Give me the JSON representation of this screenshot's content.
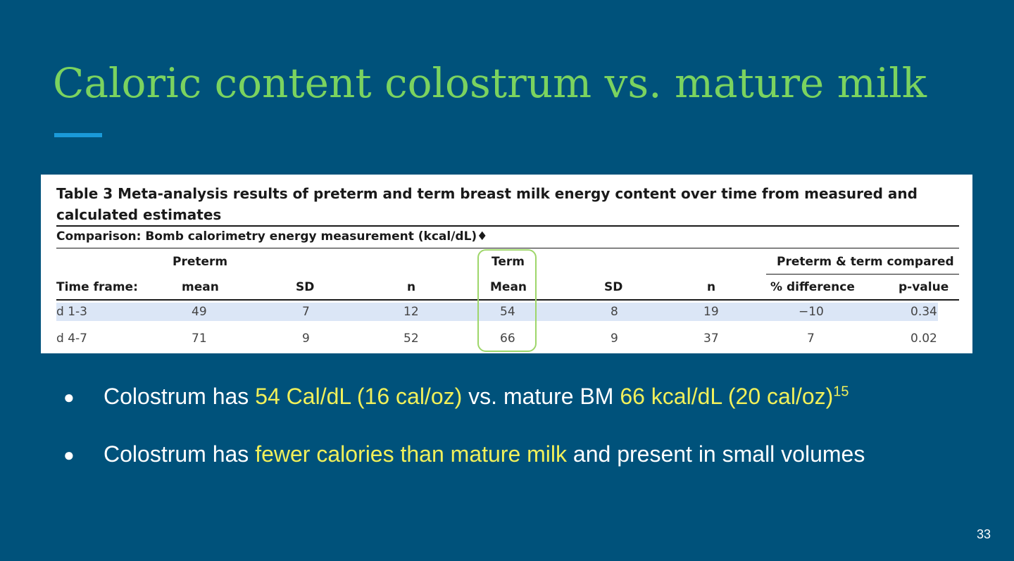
{
  "slide": {
    "title": "Caloric content colostrum vs. mature milk",
    "page_number": "33",
    "colors": {
      "background": "#00527b",
      "title": "#7bd35f",
      "accent": "#1a9ad9",
      "highlight": "#f1f05a",
      "term_box": "#9ed66a"
    }
  },
  "table": {
    "caption": "Table 3 Meta-analysis results of preterm and term breast milk energy content over time from measured and calculated estimates",
    "comparison": "Comparison: Bomb calorimetry energy measurement (kcal/dL)♦",
    "group_headers": {
      "preterm": "Preterm",
      "term": "Term",
      "compared": "Preterm & term compared"
    },
    "columns": [
      "Time frame:",
      "mean",
      "SD",
      "n",
      "Mean",
      "SD",
      "n",
      "% difference",
      "p-value"
    ],
    "rows": [
      [
        "d 1-3",
        "49",
        "7",
        "12",
        "54",
        "8",
        "19",
        "−10",
        "0.34"
      ],
      [
        "d 4-7",
        "71",
        "9",
        "52",
        "66",
        "9",
        "37",
        "7",
        "0.02"
      ]
    ]
  },
  "bullets": [
    {
      "parts": [
        "Colostrum has ",
        "54 Cal/dL (16 cal/oz)",
        " vs. mature BM ",
        "66 kcal/dL (20 cal/oz)"
      ],
      "superscript": "15"
    },
    {
      "parts": [
        "Colostrum has ",
        "fewer calories than mature milk",
        " and present in small volumes"
      ]
    }
  ]
}
